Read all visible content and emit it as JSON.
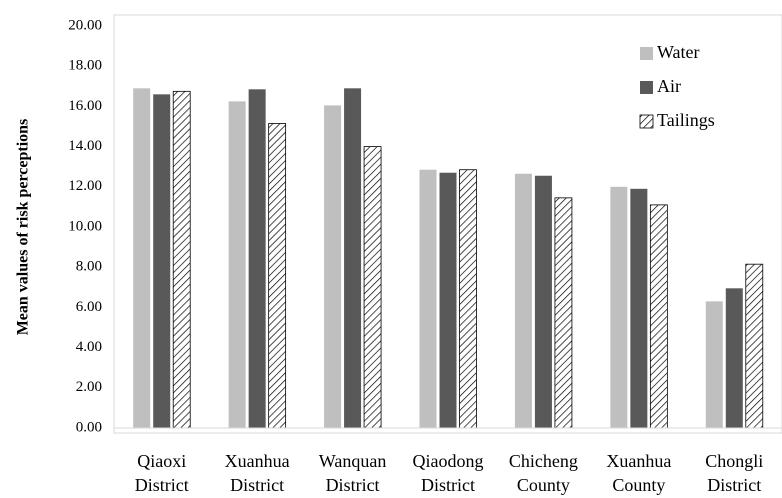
{
  "chart_data": {
    "type": "bar",
    "title": "",
    "xlabel": "",
    "ylabel": "Mean values of risk perceptions",
    "ylim": [
      0,
      20
    ],
    "ytick_step": 2,
    "ytick_decimals": 2,
    "grid": false,
    "legend_position": "top-right",
    "categories": [
      [
        "Qiaoxi",
        "District"
      ],
      [
        "Xuanhua",
        "District"
      ],
      [
        "Wanquan",
        "District"
      ],
      [
        "Qiaodong",
        "District"
      ],
      [
        "Chicheng",
        "County"
      ],
      [
        "Xuanhua",
        "County"
      ],
      [
        "Chongli",
        "District"
      ]
    ],
    "series": [
      {
        "name": "Water",
        "color": "#bfbfbf",
        "pattern": "solid",
        "values": [
          16.9,
          16.25,
          16.05,
          12.85,
          12.65,
          12.0,
          6.3
        ]
      },
      {
        "name": "Air",
        "color": "#595959",
        "pattern": "solid",
        "values": [
          16.6,
          16.85,
          16.9,
          12.7,
          12.55,
          11.9,
          6.95
        ]
      },
      {
        "name": "Tailings",
        "color": "#000000",
        "pattern": "hatch",
        "values": [
          16.75,
          15.15,
          14.0,
          12.85,
          11.45,
          11.1,
          8.15
        ]
      }
    ]
  }
}
